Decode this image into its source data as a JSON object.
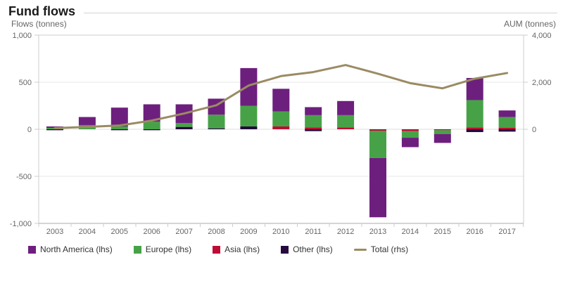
{
  "header": {
    "title": "Fund flows"
  },
  "legend": [
    {
      "label": "North America (lhs)",
      "color": "#6d1f7e",
      "type": "box"
    },
    {
      "label": "Europe (lhs)",
      "color": "#47a247",
      "type": "box"
    },
    {
      "label": "Asia (lhs)",
      "color": "#c00c34",
      "type": "box"
    },
    {
      "label": "Other (lhs)",
      "color": "#26093f",
      "type": "box"
    },
    {
      "label": "Total (rhs)",
      "color": "#9a8b62",
      "type": "line"
    }
  ],
  "chart_data": {
    "type": "combo: stacked bar (lhs) + line (rhs)",
    "title": "Fund flows",
    "categories": [
      "2003",
      "2004",
      "2005",
      "2006",
      "2007",
      "2008",
      "2009",
      "2010",
      "2011",
      "2012",
      "2013",
      "2014",
      "2015",
      "2016",
      "2017"
    ],
    "series": [
      {
        "name": "North America (lhs)",
        "type": "bar",
        "axis": "lhs",
        "color": "#6d1f7e",
        "values": [
          15,
          85,
          200,
          185,
          200,
          170,
          400,
          240,
          85,
          150,
          -630,
          -100,
          -95,
          235,
          70
        ]
      },
      {
        "name": "Europe (lhs)",
        "type": "bar",
        "axis": "lhs",
        "color": "#47a247",
        "values": [
          15,
          45,
          30,
          80,
          40,
          145,
          220,
          160,
          130,
          130,
          -290,
          -70,
          -40,
          290,
          115
        ]
      },
      {
        "name": "Asia (lhs)",
        "type": "bar",
        "axis": "lhs",
        "color": "#c00c34",
        "values": [
          0,
          0,
          0,
          0,
          0,
          0,
          0,
          30,
          20,
          20,
          -15,
          -20,
          -10,
          20,
          15
        ]
      },
      {
        "name": "Other (lhs)",
        "type": "bar",
        "axis": "lhs",
        "color": "#26093f",
        "values": [
          -10,
          0,
          -10,
          -10,
          25,
          10,
          30,
          0,
          -20,
          0,
          0,
          0,
          0,
          -30,
          -25
        ]
      },
      {
        "name": "Total (rhs)",
        "type": "line",
        "axis": "rhs",
        "color": "#9a8b62",
        "values": [
          50,
          100,
          160,
          370,
          670,
          1020,
          1860,
          2260,
          2430,
          2730,
          2360,
          1960,
          1740,
          2150,
          2390
        ]
      }
    ],
    "stack_order_bottom_up": [
      "Other (lhs)",
      "Asia (lhs)",
      "Europe (lhs)",
      "North America (lhs)"
    ],
    "left_axis": {
      "title": "Flows (tonnes)",
      "min": -1000,
      "max": 1000,
      "tick_labels": [
        "1,000",
        "500",
        "0",
        "-500",
        "-1,000"
      ],
      "tick_values": [
        1000,
        500,
        0,
        -500,
        -1000
      ]
    },
    "right_axis": {
      "title": "AUM (tonnes)",
      "min": -4000,
      "max": 4000,
      "tick_labels": [
        "4,000",
        "2,000",
        "0"
      ],
      "tick_values": [
        4000,
        2000,
        0
      ]
    },
    "grid": true,
    "legend_position": "bottom-left"
  }
}
